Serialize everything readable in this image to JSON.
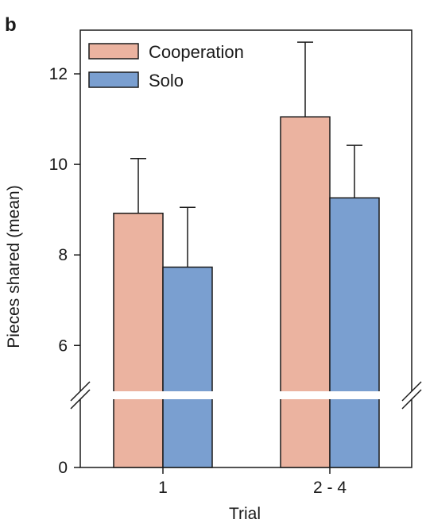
{
  "panel_label": "b",
  "chart_data": {
    "type": "bar",
    "ylabel": "Pieces shared (mean)",
    "xlabel": "Trial",
    "categories": [
      "1",
      "2 - 4"
    ],
    "series": [
      {
        "name": "Cooperation",
        "color": "#ebb3a0",
        "values": [
          8.92,
          11.05
        ],
        "error_upper": [
          10.13,
          12.7
        ]
      },
      {
        "name": "Solo",
        "color": "#7a9fd0",
        "values": [
          7.73,
          9.26
        ],
        "error_upper": [
          9.05,
          10.42
        ]
      }
    ],
    "yticks": [
      0,
      6,
      8,
      10,
      12
    ],
    "ylim_upper": [
      4.9,
      13
    ],
    "ylim_lower": [
      0,
      4.9
    ],
    "axis_break": true,
    "legend_position": "top-left",
    "grid": false
  }
}
